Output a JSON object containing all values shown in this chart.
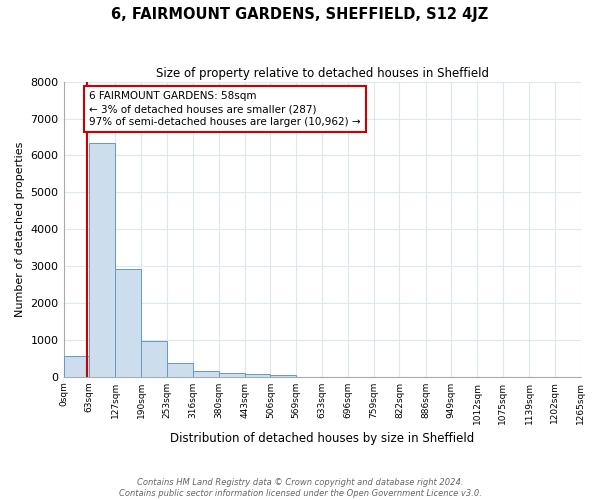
{
  "title": "6, FAIRMOUNT GARDENS, SHEFFIELD, S12 4JZ",
  "subtitle": "Size of property relative to detached houses in Sheffield",
  "xlabel": "Distribution of detached houses by size in Sheffield",
  "ylabel": "Number of detached properties",
  "bin_edges": [
    0,
    63,
    127,
    190,
    253,
    316,
    380,
    443,
    506,
    569,
    633,
    696,
    759,
    822,
    886,
    949,
    1012,
    1075,
    1139,
    1202,
    1265
  ],
  "bar_heights": [
    550,
    6350,
    2920,
    960,
    360,
    150,
    100,
    70,
    50,
    0,
    0,
    0,
    0,
    0,
    0,
    0,
    0,
    0,
    0,
    0
  ],
  "bar_color": "#ccdded",
  "bar_edge_color": "#6699bb",
  "property_size": 58,
  "vline_color": "#cc0000",
  "annotation_text": "6 FAIRMOUNT GARDENS: 58sqm\n← 3% of detached houses are smaller (287)\n97% of semi-detached houses are larger (10,962) →",
  "annotation_box_color": "#ffffff",
  "annotation_box_edge": "#cc0000",
  "ylim": [
    0,
    8000
  ],
  "yticks": [
    0,
    1000,
    2000,
    3000,
    4000,
    5000,
    6000,
    7000,
    8000
  ],
  "tick_labels": [
    "0sqm",
    "63sqm",
    "127sqm",
    "190sqm",
    "253sqm",
    "316sqm",
    "380sqm",
    "443sqm",
    "506sqm",
    "569sqm",
    "633sqm",
    "696sqm",
    "759sqm",
    "822sqm",
    "886sqm",
    "949sqm",
    "1012sqm",
    "1075sqm",
    "1139sqm",
    "1202sqm",
    "1265sqm"
  ],
  "footer_line1": "Contains HM Land Registry data © Crown copyright and database right 2024.",
  "footer_line2": "Contains public sector information licensed under the Open Government Licence v3.0.",
  "background_color": "#ffffff",
  "grid_color": "#dce8f0"
}
